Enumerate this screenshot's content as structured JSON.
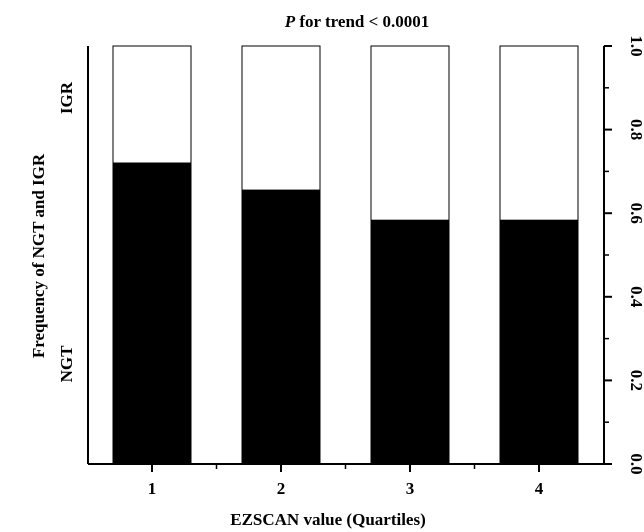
{
  "chart_data": {
    "type": "bar",
    "stacked": true,
    "title_prefix_italic": "P",
    "title_rest": " for trend < 0.0001",
    "xlabel": "EZSCAN value (Quartiles)",
    "ylabel": "Frequency of NGT and IGR",
    "categories": [
      "1",
      "2",
      "3",
      "4"
    ],
    "ylim": [
      0,
      1.0
    ],
    "y_ticks": [
      "0.0",
      "0.2",
      "0.4",
      "0.6",
      "0.8",
      "1.0"
    ],
    "y_minor_tick_step": 0.1,
    "y_axis_side": "right",
    "series": [
      {
        "name": "NGT",
        "color": "#000000",
        "values": [
          0.72,
          0.655,
          0.583,
          0.583
        ]
      },
      {
        "name": "IGR",
        "color": "#ffffff",
        "values": [
          0.28,
          0.345,
          0.417,
          0.417
        ]
      }
    ],
    "grid": false
  }
}
